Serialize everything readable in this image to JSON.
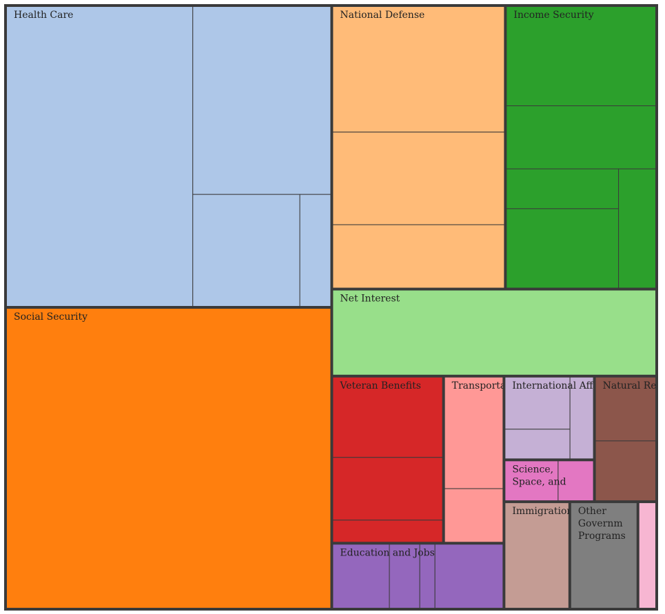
{
  "chart_data": {
    "type": "treemap",
    "title": "",
    "categories": [
      {
        "name": "Health Care",
        "label_lines": [
          "Health Care"
        ],
        "color": "#aec7e8",
        "values": [
          1120,
          520,
          240,
          70
        ]
      },
      {
        "name": "Social Security",
        "label_lines": [
          "Social Security"
        ],
        "color": "#ff7f0e",
        "values": [
          1950
        ]
      },
      {
        "name": "National Defense",
        "label_lines": [
          "National Defense"
        ],
        "color": "#ffbb78",
        "values": [
          435,
          320,
          220
        ]
      },
      {
        "name": "Income Security",
        "label_lines": [
          "Income Security"
        ],
        "color": "#2ca02c",
        "values": [
          300,
          190,
          90,
          180,
          90
        ]
      },
      {
        "name": "Net Interest",
        "label_lines": [
          "Net Interest"
        ],
        "color": "#98df8a",
        "values": [
          560
        ]
      },
      {
        "name": "Veteran Benefits",
        "label_lines": [
          "Veteran Benefits"
        ],
        "color": "#d62728",
        "values": [
          180,
          140,
          50
        ]
      },
      {
        "name": "Transportation",
        "label_lines": [
          "Transportation"
        ],
        "color": "#ff9896",
        "values": [
          135,
          65
        ]
      },
      {
        "name": "Education and Jobs",
        "label_lines": [
          "Education and Jobs"
        ],
        "color": "#9467bd",
        "values": [
          75,
          40,
          20,
          90
        ]
      },
      {
        "name": "International Affairs",
        "label_lines": [
          "International Affairs"
        ],
        "color": "#c5b0d5",
        "values": [
          70,
          40,
          40
        ]
      },
      {
        "name": "Science, Space, and Technology",
        "label_lines": [
          "Science,",
          "Space, and"
        ],
        "color": "#e377c2",
        "values": [
          45,
          30
        ]
      },
      {
        "name": "Natural Resources and Environment",
        "label_lines": [
          "Natural Resources and"
        ],
        "color": "#8c564b",
        "values": [
          80,
          75
        ]
      },
      {
        "name": "Immigration and Other",
        "label_lines": [
          "Immigration and Other"
        ],
        "color": "#c49c94",
        "values": [
          140
        ]
      },
      {
        "name": "Other Government Programs",
        "label_lines": [
          "Other",
          "Governm",
          "Programs"
        ],
        "color": "#7f7f7f",
        "values": [
          145
        ]
      },
      {
        "name": "",
        "label_lines": [],
        "color": "#f7b6d2",
        "values": [
          40
        ]
      }
    ]
  }
}
